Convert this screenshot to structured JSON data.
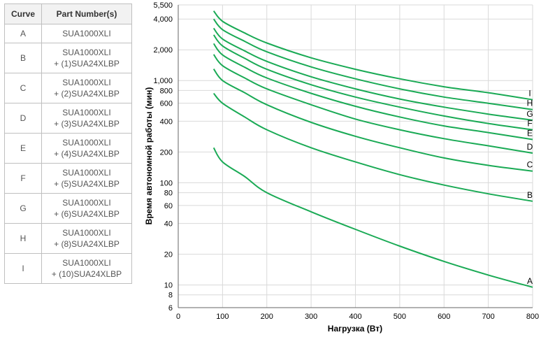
{
  "table": {
    "headers": [
      "Curve",
      "Part Number(s)"
    ],
    "rows": [
      {
        "curve": "A",
        "parts": [
          "SUA1000XLI"
        ]
      },
      {
        "curve": "B",
        "parts": [
          "SUA1000XLI",
          "+ (1)SUA24XLBP"
        ]
      },
      {
        "curve": "C",
        "parts": [
          "SUA1000XLI",
          "+ (2)SUA24XLBP"
        ]
      },
      {
        "curve": "D",
        "parts": [
          "SUA1000XLI",
          "+ (3)SUA24XLBP"
        ]
      },
      {
        "curve": "E",
        "parts": [
          "SUA1000XLI",
          "+ (4)SUA24XLBP"
        ]
      },
      {
        "curve": "F",
        "parts": [
          "SUA1000XLI",
          "+ (5)SUA24XLBP"
        ]
      },
      {
        "curve": "G",
        "parts": [
          "SUA1000XLI",
          "+ (6)SUA24XLBP"
        ]
      },
      {
        "curve": "H",
        "parts": [
          "SUA1000XLI",
          "+ (8)SUA24XLBP"
        ]
      },
      {
        "curve": "I",
        "parts": [
          "SUA1000XLI",
          "+ (10)SUA24XLBP"
        ]
      }
    ]
  },
  "chart_data": {
    "type": "line",
    "xlabel": "Нагрузка (Вт)",
    "ylabel": "Время автономной работы (мин)",
    "xlim": [
      0,
      800
    ],
    "ylim": [
      6,
      5500
    ],
    "yscale": "log",
    "grid": true,
    "line_color": "#1aaa55",
    "xticks": [
      0,
      100,
      200,
      300,
      400,
      500,
      600,
      700,
      800
    ],
    "x_tick_labels": [
      "0",
      "100",
      "200",
      "300",
      "400",
      "500",
      "600",
      "700",
      "800"
    ],
    "yticks": [
      6,
      8,
      10,
      20,
      40,
      60,
      80,
      100,
      200,
      400,
      600,
      800,
      1000,
      2000,
      4000,
      5500
    ],
    "y_tick_labels": [
      "6",
      "8",
      "10",
      "20",
      "40",
      "60",
      "80",
      "100",
      "200",
      "400",
      "600",
      "800",
      "1,000",
      "2,000",
      "4,000",
      "5,500"
    ],
    "x": [
      80,
      100,
      150,
      200,
      300,
      400,
      500,
      600,
      700,
      800
    ],
    "series": [
      {
        "name": "A",
        "values": [
          220,
          160,
          115,
          80,
          52,
          35,
          24,
          17,
          12.5,
          9.5
        ]
      },
      {
        "name": "B",
        "values": [
          750,
          600,
          440,
          330,
          220,
          160,
          120,
          95,
          78,
          66
        ]
      },
      {
        "name": "C",
        "values": [
          1300,
          1000,
          760,
          580,
          390,
          285,
          220,
          175,
          148,
          130
        ]
      },
      {
        "name": "D",
        "values": [
          1800,
          1400,
          1060,
          830,
          580,
          420,
          330,
          270,
          230,
          195
        ]
      },
      {
        "name": "E",
        "values": [
          2300,
          1780,
          1350,
          1060,
          750,
          560,
          440,
          360,
          310,
          265
        ]
      },
      {
        "name": "F",
        "values": [
          2800,
          2180,
          1650,
          1290,
          910,
          690,
          550,
          450,
          380,
          330
        ]
      },
      {
        "name": "G",
        "values": [
          3250,
          2550,
          1950,
          1540,
          1090,
          830,
          660,
          550,
          470,
          410
        ]
      },
      {
        "name": "H",
        "values": [
          4000,
          3150,
          2420,
          1910,
          1360,
          1040,
          830,
          690,
          600,
          520
        ]
      },
      {
        "name": "I",
        "values": [
          4800,
          3800,
          2920,
          2330,
          1670,
          1290,
          1040,
          870,
          760,
          650
        ]
      }
    ]
  }
}
